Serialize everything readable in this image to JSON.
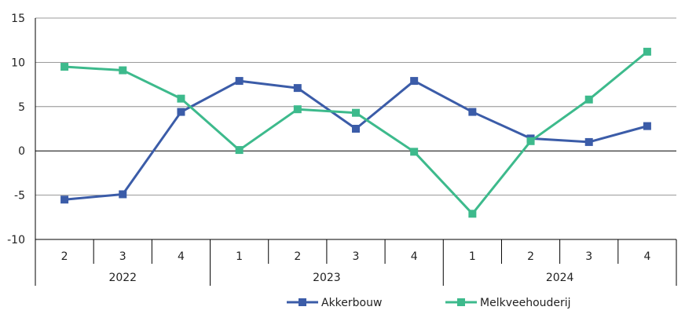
{
  "chart_data": {
    "type": "line",
    "title": "",
    "xlabel": "",
    "ylabel": "",
    "ylim": [
      -10,
      15
    ],
    "yticks": [
      -10,
      -5,
      0,
      5,
      10,
      15
    ],
    "grid": true,
    "legend_position": "bottom",
    "years": [
      {
        "label": "2022",
        "quarters": [
          "2",
          "3",
          "4"
        ]
      },
      {
        "label": "2023",
        "quarters": [
          "1",
          "2",
          "3",
          "4"
        ]
      },
      {
        "label": "2024",
        "quarters": [
          "1",
          "2",
          "3",
          "4"
        ]
      }
    ],
    "categories": [
      "2022 Q2",
      "2022 Q3",
      "2022 Q4",
      "2023 Q1",
      "2023 Q2",
      "2023 Q3",
      "2023 Q4",
      "2024 Q1",
      "2024 Q2",
      "2024 Q3",
      "2024 Q4"
    ],
    "series": [
      {
        "name": "Akkerbouw",
        "color": "#3b5ca8",
        "values": [
          -5.5,
          -4.9,
          4.4,
          7.9,
          7.1,
          2.5,
          7.9,
          4.4,
          1.4,
          1.0,
          2.8
        ]
      },
      {
        "name": "Melkveehouderij",
        "color": "#3dba8c",
        "values": [
          9.5,
          9.1,
          5.9,
          0.1,
          4.7,
          4.3,
          -0.1,
          -7.1,
          1.1,
          5.8,
          11.2
        ]
      }
    ]
  }
}
